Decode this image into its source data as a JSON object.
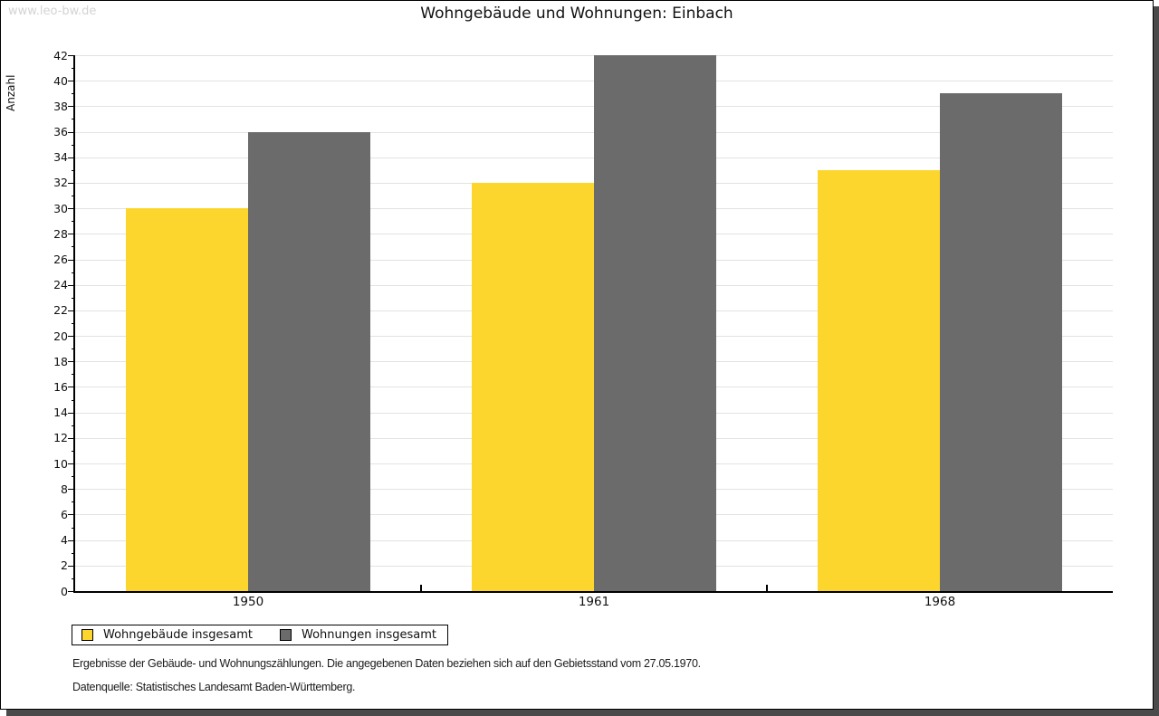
{
  "watermark": "www.leo-bw.de",
  "title": "Wohngebäude und Wohnungen: Einbach",
  "chart_data": {
    "type": "bar",
    "title": "Wohngebäude und Wohnungen: Einbach",
    "categories": [
      "1950",
      "1961",
      "1968"
    ],
    "series": [
      {
        "name": "Wohngebäude insgesamt",
        "color": "#FCD62D",
        "values": [
          30,
          32,
          33
        ]
      },
      {
        "name": "Wohnungen insgesamt",
        "color": "#6B6B6B",
        "values": [
          36,
          42,
          39
        ]
      }
    ],
    "xlabel": "",
    "ylabel": "Anzahl",
    "ylim": [
      0,
      42
    ],
    "ytick_step": 2,
    "minor_tick_step": 1,
    "grid": true,
    "gridline_color": "#e2e2e2",
    "legend_position": "bottom-left"
  },
  "footer": {
    "line1": "Ergebnisse der Gebäude- und Wohnungszählungen. Die angegebenen Daten beziehen sich auf den Gebietsstand vom 27.05.1970.",
    "line2": "Datenquelle: Statistisches Landesamt Baden-Württemberg."
  },
  "colors": {
    "page_background": "#ffffff",
    "page_border": "#000000",
    "page_shadow": "#4a4a4a",
    "watermark_text": "#d3d3d3",
    "axis": "#000000",
    "text": "#101010"
  }
}
